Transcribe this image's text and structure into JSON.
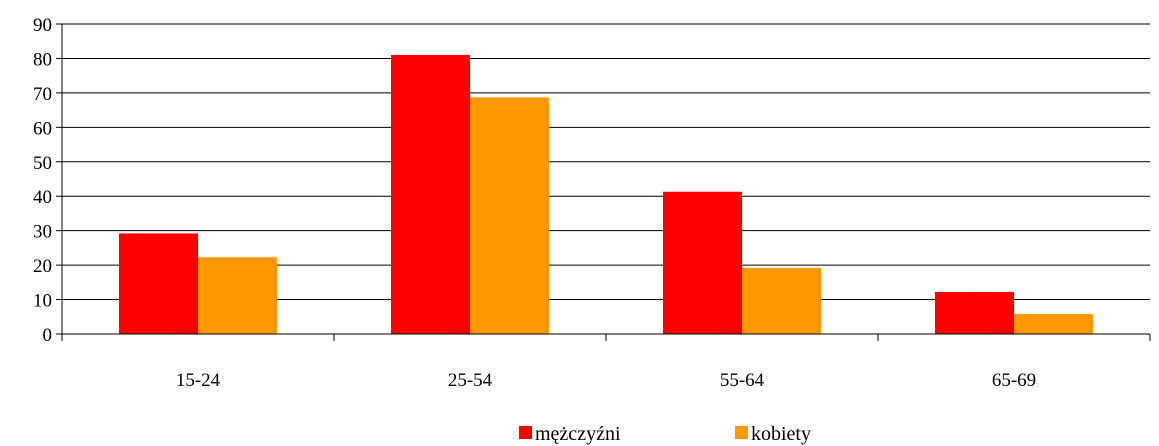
{
  "chart_data": {
    "type": "bar",
    "categories": [
      "15-24",
      "25-54",
      "55-64",
      "65-69"
    ],
    "series": [
      {
        "name": "mężczyźni",
        "values": [
          29.2,
          81.0,
          41.3,
          12.2
        ],
        "color": "#ff0000"
      },
      {
        "name": "kobiety",
        "values": [
          22.3,
          68.7,
          19.2,
          5.8
        ],
        "color": "#ff9900"
      }
    ],
    "title": "",
    "xlabel": "",
    "ylabel": "",
    "ylim": [
      0,
      90
    ],
    "yticks": [
      "0",
      "10",
      "20",
      "30",
      "40",
      "50",
      "60",
      "70",
      "80",
      "90"
    ],
    "grid": true,
    "legend": "bottom-center"
  }
}
